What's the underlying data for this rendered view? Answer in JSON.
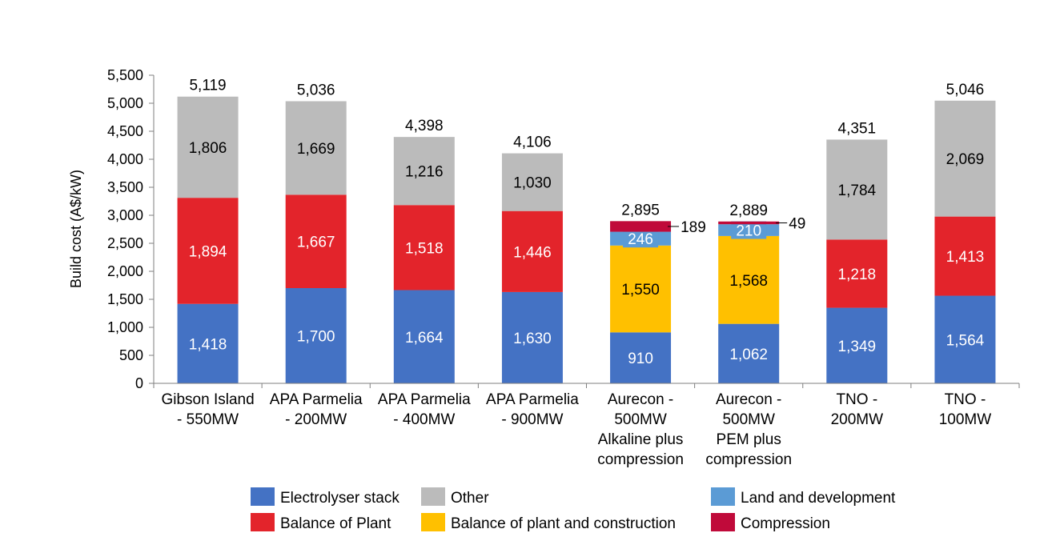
{
  "chart_data": {
    "type": "bar",
    "stacked": true,
    "title": "",
    "xlabel": "",
    "ylabel": "Build cost (A$/kW)",
    "ylim": [
      0,
      5500
    ],
    "yticks": [
      "0",
      "500",
      "1,000",
      "1,500",
      "2,000",
      "2,500",
      "3,000",
      "3,500",
      "4,000",
      "4,500",
      "5,000",
      "5,500"
    ],
    "grid": false,
    "legend_position": "bottom",
    "categories": [
      [
        "Gibson Island",
        "- 550MW"
      ],
      [
        "APA Parmelia",
        "- 200MW"
      ],
      [
        "APA Parmelia",
        "- 400MW"
      ],
      [
        "APA Parmelia",
        "- 900MW"
      ],
      [
        "Aurecon -",
        "500MW",
        "Alkaline plus",
        "compression"
      ],
      [
        "Aurecon -",
        "500MW",
        "PEM plus",
        "compression"
      ],
      [
        "TNO -",
        "200MW"
      ],
      [
        "TNO -",
        "100MW"
      ]
    ],
    "series": [
      {
        "name": "Electrolyser stack",
        "color": "#4472C4",
        "label_color": "#ffffff",
        "values": [
          1418,
          1700,
          1664,
          1630,
          910,
          1062,
          1349,
          1564
        ],
        "labels": [
          "1,418",
          "1,700",
          "1,664",
          "1,630",
          "910",
          "1,062",
          "1,349",
          "1,564"
        ]
      },
      {
        "name": "Balance of Plant",
        "color": "#E3242B",
        "label_color": "#ffffff",
        "values": [
          1894,
          1667,
          1518,
          1446,
          0,
          0,
          1218,
          1413
        ],
        "labels": [
          "1,894",
          "1,667",
          "1,518",
          "1,446",
          "",
          "",
          "1,218",
          "1,413"
        ]
      },
      {
        "name": "Balance of plant and construction",
        "color": "#FFC000",
        "label_color": "#000000",
        "values": [
          0,
          0,
          0,
          0,
          1550,
          1568,
          0,
          0
        ],
        "labels": [
          "",
          "",
          "",
          "",
          "1,550",
          "1,568",
          "",
          ""
        ]
      },
      {
        "name": "Land and development",
        "color": "#5B9BD5",
        "label_color": "#ffffff",
        "values": [
          0,
          0,
          0,
          0,
          246,
          210,
          0,
          0
        ],
        "labels": [
          "",
          "",
          "",
          "",
          "246",
          "210",
          "",
          ""
        ]
      },
      {
        "name": "Compression",
        "color": "#C00A3A",
        "label_color": "#000000",
        "values": [
          0,
          0,
          0,
          0,
          189,
          49,
          0,
          0
        ],
        "labels": [
          "",
          "",
          "",
          "",
          "189",
          "49",
          "",
          ""
        ],
        "label_outside": true
      },
      {
        "name": "Other",
        "color": "#BBBBBB",
        "label_color": "#000000",
        "values": [
          1806,
          1669,
          1216,
          1030,
          0,
          0,
          1784,
          2069
        ],
        "labels": [
          "1,806",
          "1,669",
          "1,216",
          "1,030",
          "",
          "",
          "1,784",
          "2,069"
        ]
      }
    ],
    "totals": [
      5119,
      5036,
      4398,
      4106,
      2895,
      2889,
      4351,
      5046
    ],
    "total_labels": [
      "5,119",
      "5,036",
      "4,398",
      "4,106",
      "2,895",
      "2,889",
      "4,351",
      "5,046"
    ],
    "legend": [
      [
        "Electrolyser stack",
        "Other",
        "Land and development"
      ],
      [
        "Balance of Plant",
        "Balance of plant and construction",
        "Compression"
      ]
    ]
  }
}
